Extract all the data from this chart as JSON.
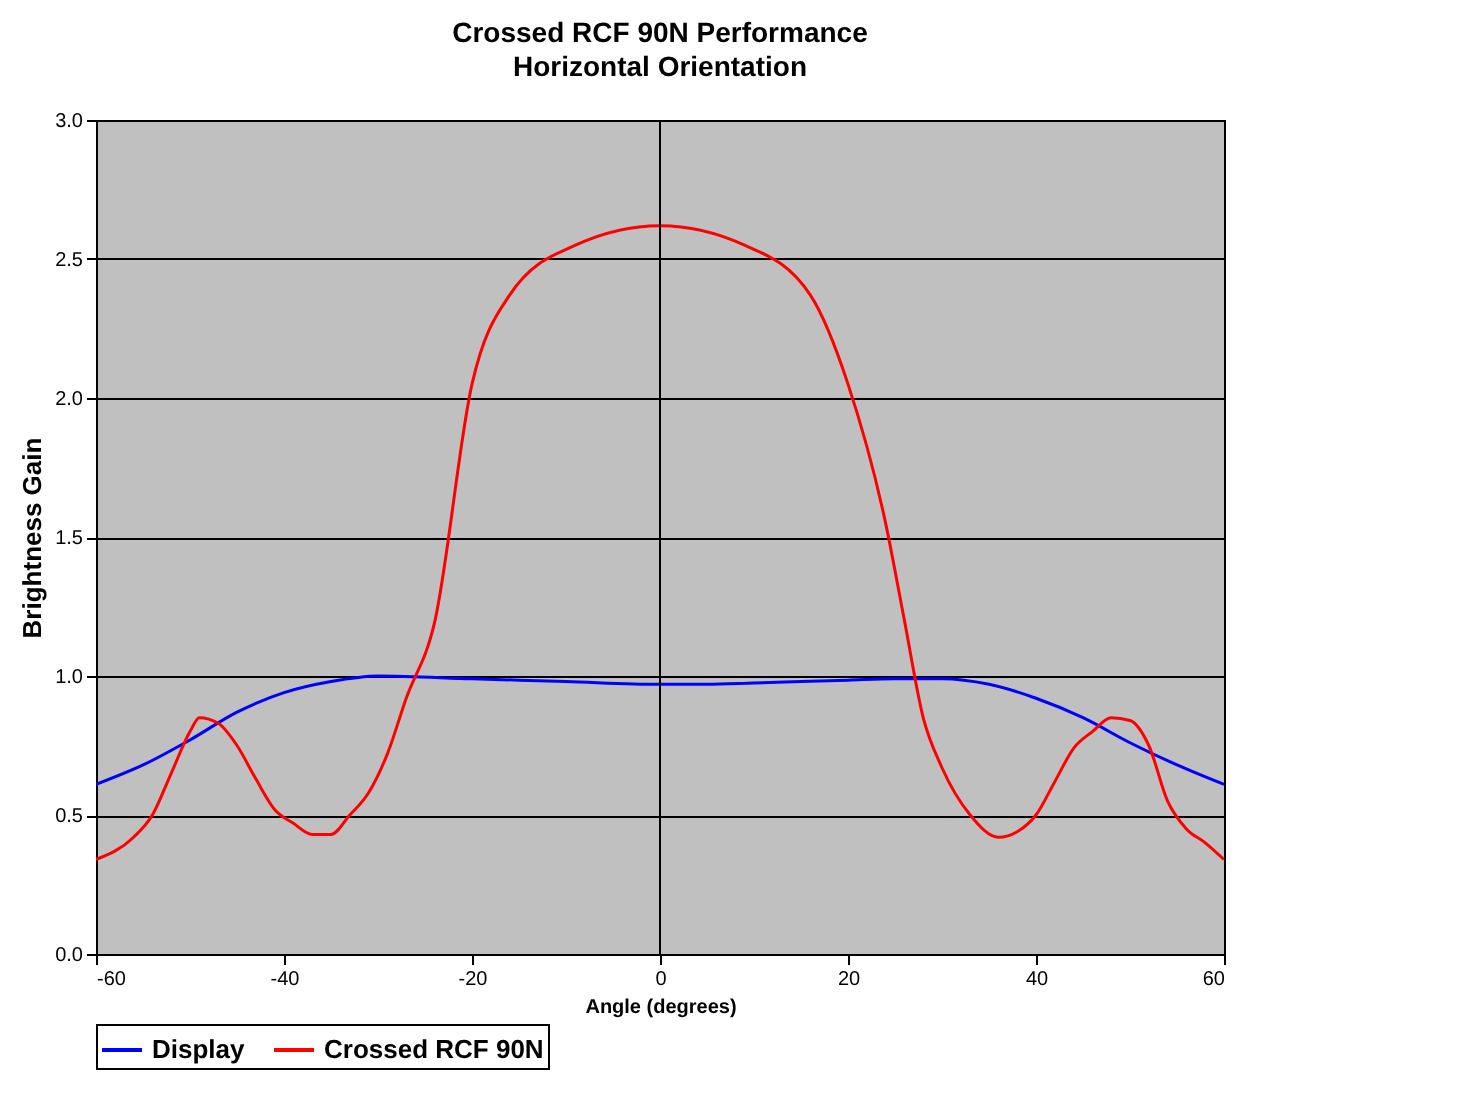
{
  "chart_data": {
    "type": "line",
    "title": "Crossed RCF 90N Performance",
    "subtitle": "Horizontal Orientation",
    "xlabel": "Angle (degrees)",
    "ylabel": "Brightness Gain",
    "series": [
      {
        "name": "Display",
        "color": "#0000ff",
        "x": [
          -60,
          -55,
          -50,
          -45,
          -40,
          -35,
          -30,
          -20,
          -10,
          0,
          5,
          10,
          20,
          25,
          30,
          35,
          40,
          45,
          50,
          55,
          60
        ],
        "values": [
          0.61,
          0.68,
          0.77,
          0.87,
          0.94,
          0.98,
          1.0,
          0.99,
          0.98,
          0.97,
          0.97,
          0.975,
          0.985,
          0.99,
          0.99,
          0.97,
          0.92,
          0.85,
          0.76,
          0.68,
          0.61
        ]
      },
      {
        "name": "Crossed RCF 90N",
        "color": "#ff0000",
        "x": [
          -60,
          -56,
          -54,
          -52,
          -50,
          -49,
          -47,
          -45,
          -43,
          -41,
          -39,
          -37,
          -35,
          -33,
          -31,
          -29,
          -27,
          -24,
          -20,
          -16,
          -9,
          0,
          9,
          16,
          20,
          24,
          26,
          28,
          30,
          33,
          36,
          38,
          40,
          42,
          44,
          46,
          48,
          50,
          52,
          54,
          56,
          58,
          60
        ],
        "values": [
          0.34,
          0.42,
          0.5,
          0.65,
          0.8,
          0.85,
          0.83,
          0.75,
          0.63,
          0.52,
          0.47,
          0.43,
          0.43,
          0.5,
          0.58,
          0.72,
          0.92,
          1.19,
          2.05,
          2.37,
          2.55,
          2.62,
          2.55,
          2.37,
          2.05,
          1.55,
          1.2,
          0.85,
          0.67,
          0.5,
          0.42,
          0.44,
          0.5,
          0.62,
          0.74,
          0.8,
          0.85,
          0.84,
          0.75,
          0.55,
          0.45,
          0.4,
          0.34
        ]
      }
    ],
    "xlim": [
      -60,
      60
    ],
    "xticks": [
      -60,
      -40,
      -20,
      0,
      20,
      40,
      60
    ],
    "ylim": [
      0,
      3
    ],
    "yticks": [
      {
        "value": 0,
        "label": "0.0"
      },
      {
        "value": 0.5,
        "label": "0.5"
      },
      {
        "value": 1,
        "label": "1.0"
      },
      {
        "value": 1.5,
        "label": "1.5"
      },
      {
        "value": 2,
        "label": "2.0"
      },
      {
        "value": 2.5,
        "label": "2.5"
      },
      {
        "value": 3,
        "label": "3.0"
      }
    ],
    "ref_lines": [
      {
        "axis": "x",
        "value": 0,
        "color": "#000000"
      }
    ],
    "grid": "y",
    "legend": "bottom",
    "marker": "none",
    "line_style": "solid"
  }
}
